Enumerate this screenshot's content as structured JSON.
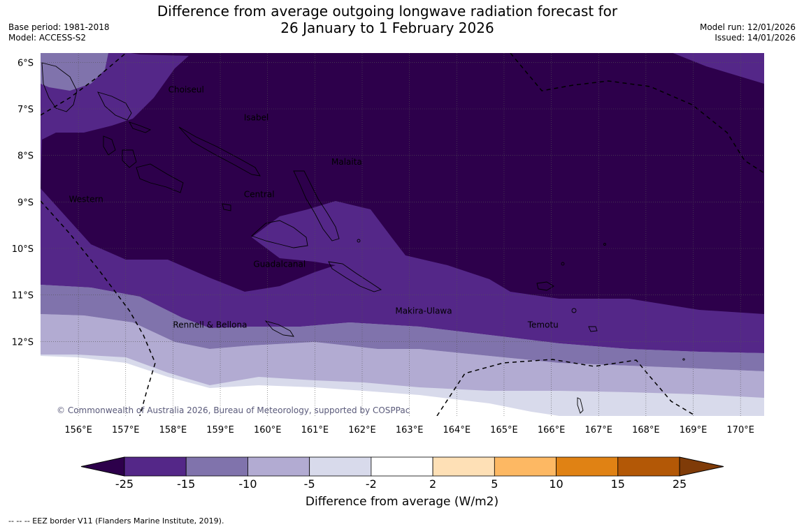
{
  "title": {
    "line1": "Difference from average outgoing longwave radiation forecast for",
    "line2": "26 January to 1 February 2026"
  },
  "meta_left": {
    "base_period": "Base period: 1981-2018",
    "model": "Model: ACCESS-S2"
  },
  "meta_right": {
    "model_run": "Model run: 12/01/2026",
    "issued": "Issued: 14/01/2026"
  },
  "map": {
    "lon_labels": [
      "156°E",
      "157°E",
      "158°E",
      "159°E",
      "160°E",
      "161°E",
      "162°E",
      "163°E",
      "164°E",
      "165°E",
      "166°E",
      "167°E",
      "168°E",
      "169°E",
      "170°E"
    ],
    "lat_labels": [
      "6°S",
      "7°S",
      "8°S",
      "9°S",
      "10°S",
      "11°S",
      "12°S"
    ],
    "lon_range": [
      155.2,
      170.5
    ],
    "lat_range": [
      -13.6,
      -5.8
    ],
    "region_labels": [
      {
        "name": "Choiseul",
        "lon": 157.9,
        "lat": -6.65
      },
      {
        "name": "Isabel",
        "lon": 159.5,
        "lat": -7.25
      },
      {
        "name": "Malaita",
        "lon": 161.35,
        "lat": -8.2
      },
      {
        "name": "Western",
        "lon": 155.8,
        "lat": -9.0
      },
      {
        "name": "Central",
        "lon": 159.5,
        "lat": -8.9
      },
      {
        "name": "Guadalcanal",
        "lon": 159.7,
        "lat": -10.4
      },
      {
        "name": "Rennell & Bellona",
        "lon": 158.0,
        "lat": -11.7
      },
      {
        "name": "Makira-Ulawa",
        "lon": 162.7,
        "lat": -11.4
      },
      {
        "name": "Temotu",
        "lon": 165.5,
        "lat": -11.7
      }
    ],
    "copyright": "© Commonwealth of Australia 2026, Bureau of Meteorology, supported by COSPPac"
  },
  "colorbar": {
    "ticks": [
      "-25",
      "-15",
      "-10",
      "-5",
      "-2",
      "2",
      "5",
      "10",
      "15",
      "25"
    ],
    "colors": [
      "#2d004b",
      "#542788",
      "#8073ac",
      "#b2abd2",
      "#d8daeb",
      "#ffffff",
      "#fee0b6",
      "#fdb863",
      "#e08214",
      "#b35806",
      "#7f3b08"
    ],
    "label": "Difference from average (W/m2)"
  },
  "footnote": "--  --  -- EEZ border V11 (Flanders Marine Institute, 2019)."
}
